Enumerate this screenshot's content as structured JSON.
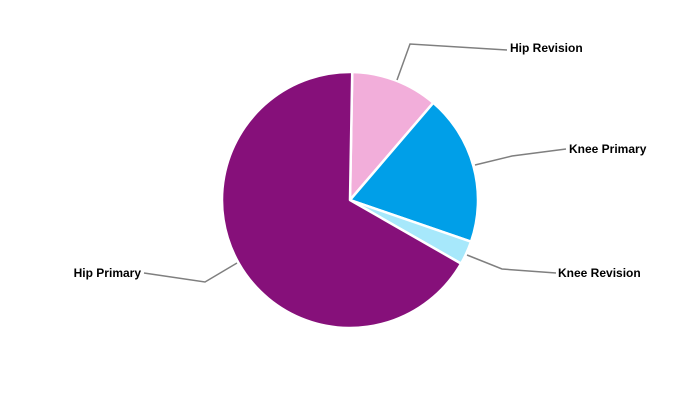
{
  "chart_data": {
    "type": "pie",
    "categories": [
      "Hip Revision",
      "Knee Primary",
      "Knee Revision",
      "Hip Primary"
    ],
    "values": [
      11,
      19,
      3,
      67
    ],
    "colors": [
      "#F2AEDA",
      "#009FE8",
      "#A7E8FB",
      "#86107A"
    ],
    "leader_line_color": "#7F7F7F",
    "legend": "none",
    "labels": "outside with leader lines"
  }
}
